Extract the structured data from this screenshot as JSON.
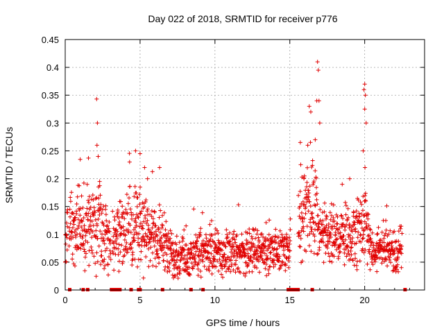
{
  "chart_data": {
    "type": "scatter",
    "title": "Day 022 of 2018, SRMTID for receiver p776",
    "xlabel": "GPS time / hours",
    "ylabel": "SRMTID / TECUs",
    "xlim": [
      0,
      24
    ],
    "ylim": [
      0,
      0.45
    ],
    "xticks": [
      0,
      5,
      10,
      15,
      20
    ],
    "xtick_labels": [
      "0",
      "5",
      "10",
      "15",
      "20"
    ],
    "yticks": [
      0,
      0.05,
      0.1,
      0.15,
      0.2,
      0.25,
      0.3,
      0.35,
      0.4,
      0.45
    ],
    "ytick_labels": [
      "0",
      "0.05",
      "0.1",
      "0.15",
      "0.2",
      "0.25",
      "0.3",
      "0.35",
      "0.4",
      "0.45"
    ],
    "grid": true,
    "marker": "plus",
    "color": "#e00000",
    "series": [
      {
        "name": "SRMTID",
        "envelope": [
          {
            "t": 0.0,
            "base": 0.085,
            "spread": 0.06
          },
          {
            "t": 0.5,
            "base": 0.11,
            "spread": 0.08
          },
          {
            "t": 1.0,
            "base": 0.12,
            "spread": 0.08
          },
          {
            "t": 1.5,
            "base": 0.1,
            "spread": 0.09
          },
          {
            "t": 2.0,
            "base": 0.12,
            "spread": 0.1
          },
          {
            "t": 2.5,
            "base": 0.1,
            "spread": 0.08
          },
          {
            "t": 3.0,
            "base": 0.08,
            "spread": 0.06
          },
          {
            "t": 3.5,
            "base": 0.1,
            "spread": 0.07
          },
          {
            "t": 4.0,
            "base": 0.11,
            "spread": 0.08
          },
          {
            "t": 4.5,
            "base": 0.11,
            "spread": 0.09
          },
          {
            "t": 5.0,
            "base": 0.11,
            "spread": 0.09
          },
          {
            "t": 5.5,
            "base": 0.1,
            "spread": 0.08
          },
          {
            "t": 6.0,
            "base": 0.09,
            "spread": 0.07
          },
          {
            "t": 6.5,
            "base": 0.08,
            "spread": 0.06
          },
          {
            "t": 7.0,
            "base": 0.065,
            "spread": 0.05
          },
          {
            "t": 8.0,
            "base": 0.055,
            "spread": 0.04
          },
          {
            "t": 9.0,
            "base": 0.065,
            "spread": 0.05
          },
          {
            "t": 10.0,
            "base": 0.07,
            "spread": 0.05
          },
          {
            "t": 11.0,
            "base": 0.065,
            "spread": 0.045
          },
          {
            "t": 12.0,
            "base": 0.065,
            "spread": 0.045
          },
          {
            "t": 13.0,
            "base": 0.07,
            "spread": 0.05
          },
          {
            "t": 14.0,
            "base": 0.07,
            "spread": 0.05
          },
          {
            "t": 14.6,
            "base": 0.065,
            "spread": 0.04
          },
          {
            "t": 15.6,
            "base": 0.1,
            "spread": 0.08
          },
          {
            "t": 16.0,
            "base": 0.15,
            "spread": 0.1
          },
          {
            "t": 16.5,
            "base": 0.16,
            "spread": 0.12
          },
          {
            "t": 17.0,
            "base": 0.1,
            "spread": 0.06
          },
          {
            "t": 17.5,
            "base": 0.095,
            "spread": 0.06
          },
          {
            "t": 18.0,
            "base": 0.1,
            "spread": 0.06
          },
          {
            "t": 18.5,
            "base": 0.1,
            "spread": 0.06
          },
          {
            "t": 19.0,
            "base": 0.1,
            "spread": 0.07
          },
          {
            "t": 19.5,
            "base": 0.1,
            "spread": 0.07
          },
          {
            "t": 20.0,
            "base": 0.12,
            "spread": 0.09
          },
          {
            "t": 20.5,
            "base": 0.06,
            "spread": 0.04
          },
          {
            "t": 21.0,
            "base": 0.065,
            "spread": 0.04
          },
          {
            "t": 21.5,
            "base": 0.08,
            "spread": 0.05
          },
          {
            "t": 22.0,
            "base": 0.07,
            "spread": 0.05
          },
          {
            "t": 22.5,
            "base": 0.075,
            "spread": 0.05
          }
        ],
        "gaps": [
          [
            0.18,
            0.25
          ],
          [
            3.05,
            3.15
          ],
          [
            15.05,
            15.55
          ]
        ],
        "outliers": [
          [
            2.1,
            0.343
          ],
          [
            2.15,
            0.3
          ],
          [
            2.12,
            0.26
          ],
          [
            2.2,
            0.24
          ],
          [
            1.55,
            0.237
          ],
          [
            2.3,
            0.195
          ],
          [
            4.7,
            0.25
          ],
          [
            5.0,
            0.245
          ],
          [
            5.3,
            0.22
          ],
          [
            5.5,
            0.2
          ],
          [
            6.3,
            0.22
          ],
          [
            4.3,
            0.23
          ],
          [
            16.3,
            0.33
          ],
          [
            16.4,
            0.32
          ],
          [
            16.8,
            0.34
          ],
          [
            16.85,
            0.41
          ],
          [
            16.9,
            0.395
          ],
          [
            16.95,
            0.34
          ],
          [
            17.0,
            0.3
          ],
          [
            16.7,
            0.27
          ],
          [
            16.2,
            0.26
          ],
          [
            15.7,
            0.265
          ],
          [
            19.95,
            0.36
          ],
          [
            20.0,
            0.37
          ],
          [
            20.05,
            0.35
          ],
          [
            20.0,
            0.325
          ],
          [
            20.1,
            0.3
          ],
          [
            19.9,
            0.25
          ],
          [
            20.02,
            0.22
          ],
          [
            19.0,
            0.2
          ],
          [
            18.5,
            0.19
          ]
        ],
        "zero_hours": [
          0.3,
          1.2,
          1.5,
          3.1,
          3.25,
          3.35,
          3.5,
          3.6,
          3.65,
          4.4,
          4.9,
          5.0,
          6.5,
          8.4,
          9.2,
          14.9,
          15.0,
          15.1,
          15.2,
          15.3,
          15.4,
          15.5,
          15.55,
          16.5,
          22.7
        ]
      }
    ]
  }
}
